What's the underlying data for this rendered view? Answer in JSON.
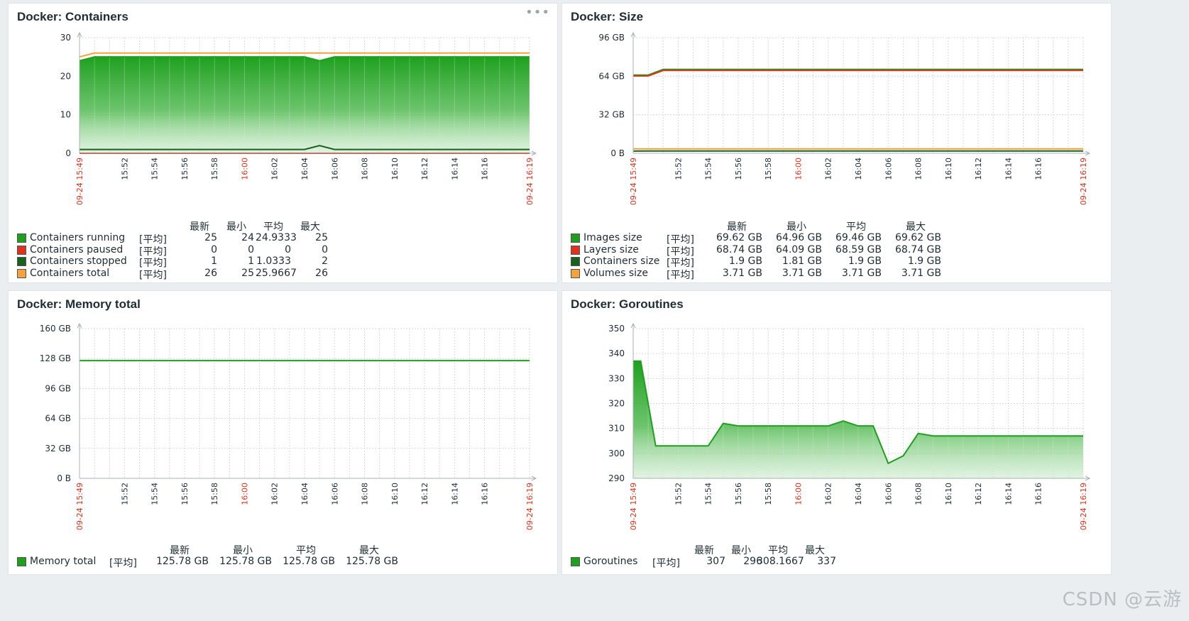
{
  "panels": [
    {
      "title": "Docker: Containers",
      "menu_icon": "ellipsis-icon",
      "show_menu": true,
      "chart_data": {
        "type": "area",
        "yticks": [
          "0",
          "10",
          "20",
          "30"
        ],
        "ylim": [
          0,
          30
        ],
        "yunit_suffix": "",
        "x_start_label": "09-24 15:49",
        "x_end_label": "09-24 16:19",
        "x_tick_labels": [
          "15:52",
          "15:54",
          "15:56",
          "15:58",
          "16:00",
          "16:02",
          "16:04",
          "16:06",
          "16:08",
          "16:10",
          "16:12",
          "16:14",
          "16:16"
        ],
        "x_red_tick": "16:00",
        "x_minutes": [
          0,
          1,
          2,
          3,
          4,
          5,
          6,
          7,
          8,
          9,
          10,
          11,
          12,
          13,
          14,
          15,
          16,
          17,
          18,
          19,
          20,
          21,
          22,
          23,
          24,
          25,
          26,
          27,
          28,
          29,
          30
        ],
        "series": [
          {
            "name": "Containers running",
            "color": "#1ea01e",
            "fill": true,
            "values": [
              24,
              25,
              25,
              25,
              25,
              25,
              25,
              25,
              25,
              25,
              25,
              25,
              25,
              25,
              25,
              25,
              24,
              25,
              25,
              25,
              25,
              25,
              25,
              25,
              25,
              25,
              25,
              25,
              25,
              25,
              25
            ]
          },
          {
            "name": "Containers paused",
            "color": "#e0311c",
            "fill": false,
            "values": [
              0,
              0,
              0,
              0,
              0,
              0,
              0,
              0,
              0,
              0,
              0,
              0,
              0,
              0,
              0,
              0,
              0,
              0,
              0,
              0,
              0,
              0,
              0,
              0,
              0,
              0,
              0,
              0,
              0,
              0,
              0
            ]
          },
          {
            "name": "Containers stopped",
            "color": "#19601f",
            "fill": false,
            "values": [
              1,
              1,
              1,
              1,
              1,
              1,
              1,
              1,
              1,
              1,
              1,
              1,
              1,
              1,
              1,
              1,
              2,
              1,
              1,
              1,
              1,
              1,
              1,
              1,
              1,
              1,
              1,
              1,
              1,
              1,
              1
            ]
          },
          {
            "name": "Containers total",
            "color": "#f4a23c",
            "fill": false,
            "values": [
              25,
              26,
              26,
              26,
              26,
              26,
              26,
              26,
              26,
              26,
              26,
              26,
              26,
              26,
              26,
              26,
              26,
              26,
              26,
              26,
              26,
              26,
              26,
              26,
              26,
              26,
              26,
              26,
              26,
              26,
              26
            ]
          }
        ]
      },
      "legend": {
        "headers": [
          "最新",
          "最小",
          "平均",
          "最大"
        ],
        "func": "[平均]",
        "rows": [
          {
            "label": "Containers running",
            "color": "#1ea01e",
            "last": "25",
            "min": "24",
            "avg": "24.9333",
            "max": "25"
          },
          {
            "label": "Containers paused",
            "color": "#e0311c",
            "last": "0",
            "min": "0",
            "avg": "0",
            "max": "0"
          },
          {
            "label": "Containers stopped",
            "color": "#19601f",
            "last": "1",
            "min": "1",
            "avg": "1.0333",
            "max": "2"
          },
          {
            "label": "Containers total",
            "color": "#f4a23c",
            "last": "26",
            "min": "25",
            "avg": "25.9667",
            "max": "26"
          }
        ]
      }
    },
    {
      "title": "Docker: Size",
      "show_menu": false,
      "chart_data": {
        "type": "line",
        "yticks": [
          "0 B",
          "32 GB",
          "64 GB",
          "96 GB"
        ],
        "ylim": [
          0,
          96
        ],
        "x_start_label": "09-24 15:49",
        "x_end_label": "09-24 16:19",
        "x_tick_labels": [
          "15:52",
          "15:54",
          "15:56",
          "15:58",
          "16:00",
          "16:02",
          "16:04",
          "16:06",
          "16:08",
          "16:10",
          "16:12",
          "16:14",
          "16:16"
        ],
        "x_red_tick": "16:00",
        "x_minutes": [
          0,
          1,
          2,
          3,
          4,
          5,
          6,
          7,
          8,
          9,
          10,
          11,
          12,
          13,
          14,
          15,
          16,
          17,
          18,
          19,
          20,
          21,
          22,
          23,
          24,
          25,
          26,
          27,
          28,
          29,
          30
        ],
        "series": [
          {
            "name": "Images size",
            "color": "#1ea01e",
            "fill": false,
            "values": [
              64.96,
              65,
              69.62,
              69.62,
              69.62,
              69.62,
              69.62,
              69.62,
              69.62,
              69.62,
              69.62,
              69.62,
              69.62,
              69.62,
              69.62,
              69.62,
              69.62,
              69.62,
              69.62,
              69.62,
              69.62,
              69.62,
              69.62,
              69.62,
              69.62,
              69.62,
              69.62,
              69.62,
              69.62,
              69.62,
              69.62
            ]
          },
          {
            "name": "Layers size",
            "color": "#e0311c",
            "fill": false,
            "values": [
              64.09,
              64.2,
              68.74,
              68.74,
              68.74,
              68.74,
              68.74,
              68.74,
              68.74,
              68.74,
              68.74,
              68.74,
              68.74,
              68.74,
              68.74,
              68.74,
              68.74,
              68.74,
              68.74,
              68.74,
              68.74,
              68.74,
              68.74,
              68.74,
              68.74,
              68.74,
              68.74,
              68.74,
              68.74,
              68.74,
              68.74
            ]
          },
          {
            "name": "Containers size",
            "color": "#19601f",
            "fill": false,
            "values": [
              1.81,
              1.9,
              1.9,
              1.9,
              1.9,
              1.9,
              1.9,
              1.9,
              1.9,
              1.9,
              1.9,
              1.9,
              1.9,
              1.9,
              1.9,
              1.9,
              1.9,
              1.9,
              1.9,
              1.9,
              1.9,
              1.9,
              1.9,
              1.9,
              1.9,
              1.9,
              1.9,
              1.9,
              1.9,
              1.9,
              1.9
            ]
          },
          {
            "name": "Volumes size",
            "color": "#f4a23c",
            "fill": false,
            "values": [
              3.71,
              3.71,
              3.71,
              3.71,
              3.71,
              3.71,
              3.71,
              3.71,
              3.71,
              3.71,
              3.71,
              3.71,
              3.71,
              3.71,
              3.71,
              3.71,
              3.71,
              3.71,
              3.71,
              3.71,
              3.71,
              3.71,
              3.71,
              3.71,
              3.71,
              3.71,
              3.71,
              3.71,
              3.71,
              3.71,
              3.71
            ]
          }
        ]
      },
      "legend": {
        "headers": [
          "最新",
          "最小",
          "平均",
          "最大"
        ],
        "func": "[平均]",
        "rows": [
          {
            "label": "Images size",
            "color": "#1ea01e",
            "last": "69.62 GB",
            "min": "64.96 GB",
            "avg": "69.46 GB",
            "max": "69.62 GB"
          },
          {
            "label": "Layers size",
            "color": "#e0311c",
            "last": "68.74 GB",
            "min": "64.09 GB",
            "avg": "68.59 GB",
            "max": "68.74 GB"
          },
          {
            "label": "Containers size",
            "color": "#19601f",
            "last": "1.9 GB",
            "min": "1.81 GB",
            "avg": "1.9 GB",
            "max": "1.9 GB"
          },
          {
            "label": "Volumes size",
            "color": "#f4a23c",
            "last": "3.71 GB",
            "min": "3.71 GB",
            "avg": "3.71 GB",
            "max": "3.71 GB"
          }
        ]
      }
    },
    {
      "title": "Docker: Memory total",
      "show_menu": false,
      "chart_data": {
        "type": "line",
        "yticks": [
          "0 B",
          "32 GB",
          "64 GB",
          "96 GB",
          "128 GB",
          "160 GB"
        ],
        "ylim": [
          0,
          160
        ],
        "x_start_label": "09-24 15:49",
        "x_end_label": "09-24 16:19",
        "x_tick_labels": [
          "15:52",
          "15:54",
          "15:56",
          "15:58",
          "16:00",
          "16:02",
          "16:04",
          "16:06",
          "16:08",
          "16:10",
          "16:12",
          "16:14",
          "16:16"
        ],
        "x_red_tick": "16:00",
        "x_minutes": [
          0,
          30
        ],
        "series": [
          {
            "name": "Memory total",
            "color": "#1ea01e",
            "fill": false,
            "values": [
              125.78,
              125.78
            ]
          }
        ]
      },
      "legend": {
        "headers": [
          "最新",
          "最小",
          "平均",
          "最大"
        ],
        "func": "[平均]",
        "rows": [
          {
            "label": "Memory total",
            "color": "#1ea01e",
            "last": "125.78 GB",
            "min": "125.78 GB",
            "avg": "125.78 GB",
            "max": "125.78 GB"
          }
        ]
      }
    },
    {
      "title": "Docker: Goroutines",
      "show_menu": false,
      "chart_data": {
        "type": "area",
        "yticks": [
          "290",
          "300",
          "310",
          "320",
          "330",
          "340",
          "350"
        ],
        "ylim": [
          290,
          350
        ],
        "x_start_label": "09-24 15:49",
        "x_end_label": "09-24 16:19",
        "x_tick_labels": [
          "15:52",
          "15:54",
          "15:56",
          "15:58",
          "16:00",
          "16:02",
          "16:04",
          "16:06",
          "16:08",
          "16:10",
          "16:12",
          "16:14",
          "16:16"
        ],
        "x_red_tick": "16:00",
        "x_minutes": [
          0,
          0.5,
          1.5,
          2,
          3,
          4,
          5,
          6,
          7,
          8,
          9,
          10,
          11,
          12,
          13,
          14,
          15,
          16,
          17,
          18,
          19,
          20,
          21,
          22,
          23,
          24,
          25,
          26,
          27,
          28,
          29,
          30
        ],
        "series": [
          {
            "name": "Goroutines",
            "color": "#1ea01e",
            "fill": true,
            "values": [
              337,
              337,
              303,
              303,
              303,
              303,
              303,
              312,
              311,
              311,
              311,
              311,
              311,
              311,
              311,
              313,
              311,
              311,
              296,
              299,
              308,
              307,
              307,
              307,
              307,
              307,
              307,
              307,
              307,
              307,
              307,
              307
            ]
          }
        ]
      },
      "legend": {
        "headers": [
          "最新",
          "最小",
          "平均",
          "最大"
        ],
        "func": "[平均]",
        "rows": [
          {
            "label": "Goroutines",
            "color": "#1ea01e",
            "last": "307",
            "min": "296",
            "avg": "308.1667",
            "max": "337"
          }
        ]
      }
    }
  ],
  "watermark": "CSDN @云游"
}
